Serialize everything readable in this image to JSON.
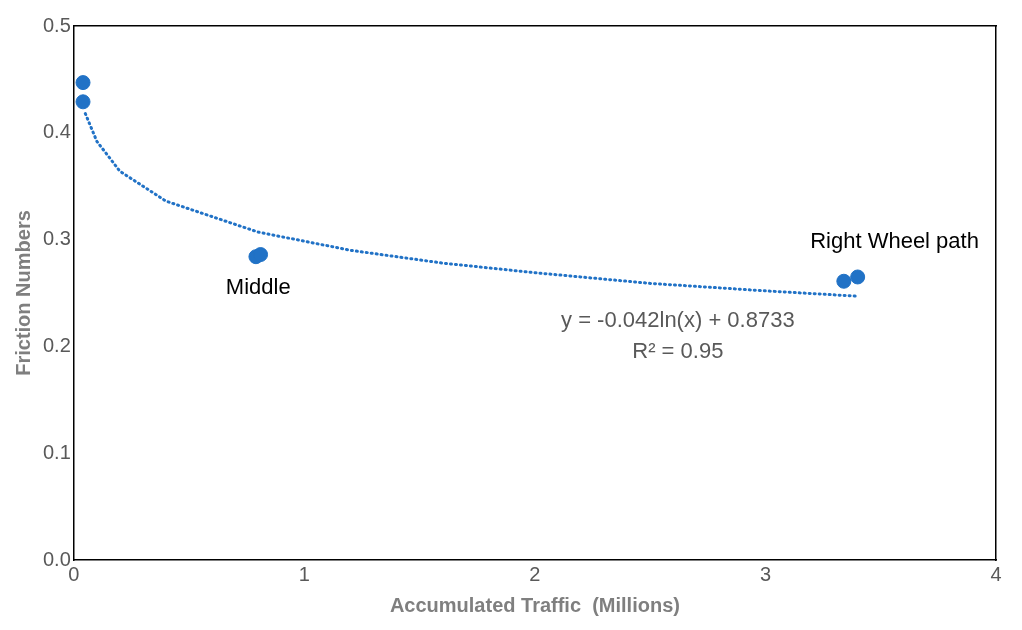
{
  "chart_data": {
    "type": "scatter",
    "xlabel": "Accumulated Traffic  (Millions)",
    "ylabel": "Friction Numbers",
    "xlim": [
      0,
      4
    ],
    "xticks": [
      0,
      1,
      2,
      3,
      4
    ],
    "ylim": [
      0,
      0.5
    ],
    "yticks": [
      {
        "value": 0,
        "label": "0.0"
      },
      0.1,
      0.2,
      0.3,
      0.4,
      0.5
    ],
    "grid": false,
    "legend": false,
    "marker": "circle",
    "series": [
      {
        "color": "#2172c6",
        "x": [
          0.04,
          0.04,
          0.79,
          0.81,
          3.34,
          3.4
        ],
        "values": [
          0.447,
          0.429,
          0.284,
          0.286,
          0.261,
          0.265
        ]
      },
      {
        "type": "line",
        "line_style": "dotted",
        "marker": "none",
        "color": "#2172c6",
        "x": [
          0.05,
          0.1,
          0.2,
          0.4,
          0.8,
          1.2,
          1.6,
          2,
          2.5,
          3,
          3.4
        ],
        "values": [
          0.418,
          0.392,
          0.364,
          0.336,
          0.307,
          0.29,
          0.278,
          0.269,
          0.259,
          0.252,
          0.247
        ]
      }
    ],
    "annotations": [
      "Middle",
      "Right Wheel path",
      "y = -0.042ln(x) + 0.8733",
      "R² = 0.95"
    ]
  }
}
